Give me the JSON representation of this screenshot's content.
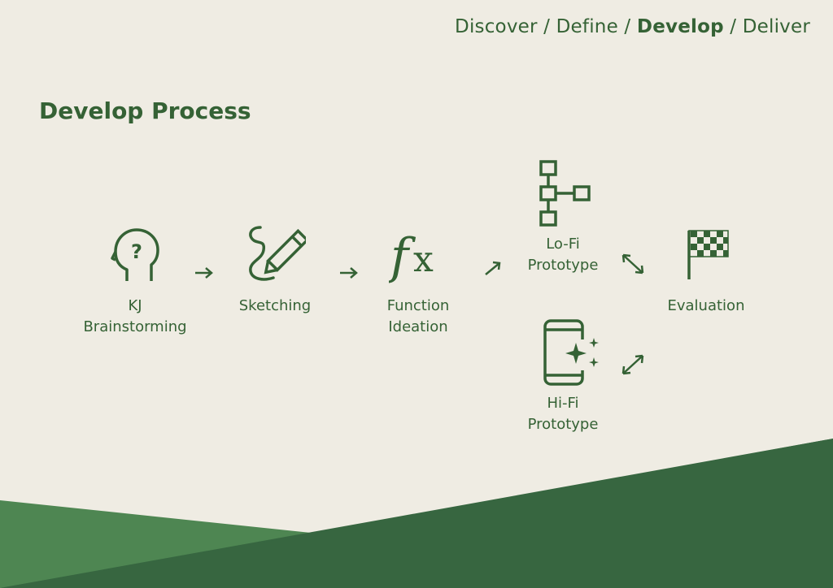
{
  "breadcrumb": {
    "discover": "Discover",
    "sep1": " / ",
    "define": "Define",
    "sep2": " / ",
    "develop": "Develop",
    "sep3": " / ",
    "deliver": "Deliver"
  },
  "title": "Develop Process",
  "steps": {
    "kj": {
      "line1": "KJ",
      "line2": "Brainstorming",
      "icon": "head-question-icon"
    },
    "sketching": {
      "line1": "Sketching",
      "icon": "pencil-scribble-icon"
    },
    "function": {
      "line1": "Function",
      "line2": "Ideation",
      "icon": "function-fx-icon"
    },
    "lofi": {
      "line1": "Lo-Fi",
      "line2": "Prototype",
      "icon": "sitemap-icon"
    },
    "hifi": {
      "line1": "Hi-Fi",
      "line2": "Prototype",
      "icon": "phone-sparkle-icon"
    },
    "evaluation": {
      "line1": "Evaluation",
      "icon": "checkered-flag-icon"
    }
  },
  "colors": {
    "background": "#efece3",
    "accent": "#356235",
    "dark_green": "#376640",
    "light_green": "#4e8652"
  }
}
